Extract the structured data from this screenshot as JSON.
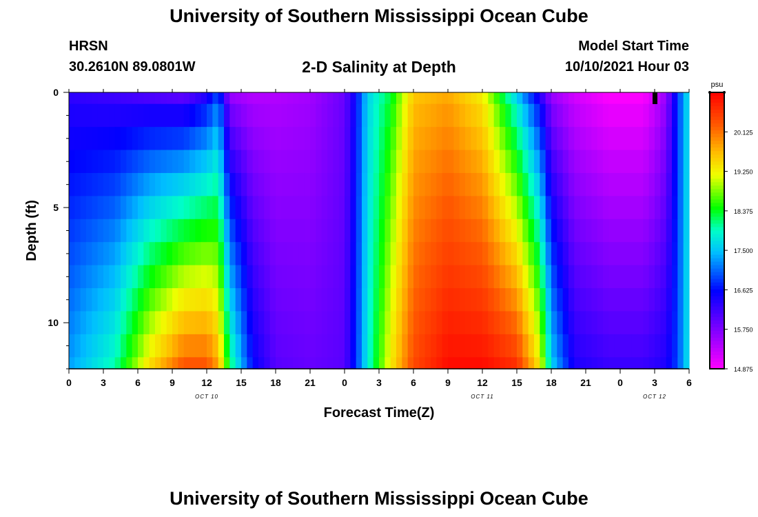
{
  "header": {
    "title": "University of Southern Mississippi Ocean Cube",
    "station": "HRSN",
    "coords": "30.2610N  89.0801W",
    "subtitle": "2-D Salinity at Depth",
    "model_start_label": "Model Start Time",
    "model_start_value": "10/10/2021 Hour 03"
  },
  "footer": {
    "title": "University of Southern Mississippi Ocean Cube"
  },
  "chart_data": {
    "type": "heatmap",
    "title": "2-D Salinity at Depth",
    "xlabel": "Forecast Time(Z)",
    "ylabel": "Depth (ft)",
    "x_start_hour_oct10": 0,
    "x_tick_labels": [
      "0",
      "3",
      "6",
      "9",
      "12",
      "15",
      "18",
      "21",
      "0",
      "3",
      "6",
      "9",
      "12",
      "15",
      "18",
      "21",
      "0",
      "3",
      "6"
    ],
    "day_labels": [
      {
        "label": "OCT 10",
        "hour": 12
      },
      {
        "label": "OCT 11",
        "hour": 36
      },
      {
        "label": "OCT 12",
        "hour": 51
      }
    ],
    "xlim_hours": [
      0,
      54
    ],
    "ylim_ft": [
      0,
      12
    ],
    "y_ticks": [
      0,
      5,
      10
    ],
    "depth_levels_ft": [
      0,
      1,
      2,
      3,
      4,
      5,
      6,
      7,
      8,
      9,
      10,
      11,
      12
    ],
    "colorbar": {
      "unit": "psu",
      "min": 14.875,
      "max": 21.0,
      "tick_labels": [
        "20.125",
        "19.250",
        "18.375",
        "17.500",
        "16.625",
        "15.750",
        "14.875"
      ]
    },
    "salinity_keyframes": [
      {
        "hour": 0,
        "surface": 16.3,
        "bottom": 17.3
      },
      {
        "hour": 4,
        "surface": 16.2,
        "bottom": 18.0
      },
      {
        "hour": 7,
        "surface": 16.1,
        "bottom": 19.4
      },
      {
        "hour": 10,
        "surface": 16.0,
        "bottom": 20.3
      },
      {
        "hour": 12,
        "surface": 16.4,
        "bottom": 20.3
      },
      {
        "hour": 13,
        "surface": 17.0,
        "bottom": 19.8
      },
      {
        "hour": 14,
        "surface": 15.6,
        "bottom": 18.2
      },
      {
        "hour": 16,
        "surface": 15.4,
        "bottom": 16.6
      },
      {
        "hour": 18,
        "surface": 15.4,
        "bottom": 16.0
      },
      {
        "hour": 21,
        "surface": 15.5,
        "bottom": 15.9
      },
      {
        "hour": 24,
        "surface": 15.9,
        "bottom": 16.0
      },
      {
        "hour": 25,
        "surface": 16.6,
        "bottom": 16.8
      },
      {
        "hour": 26,
        "surface": 17.6,
        "bottom": 17.8
      },
      {
        "hour": 28,
        "surface": 18.3,
        "bottom": 19.3
      },
      {
        "hour": 30,
        "surface": 19.6,
        "bottom": 20.4
      },
      {
        "hour": 33,
        "surface": 19.8,
        "bottom": 20.9
      },
      {
        "hour": 36,
        "surface": 19.3,
        "bottom": 20.9
      },
      {
        "hour": 39,
        "surface": 17.6,
        "bottom": 20.6
      },
      {
        "hour": 41,
        "surface": 16.4,
        "bottom": 19.3
      },
      {
        "hour": 42,
        "surface": 15.6,
        "bottom": 17.6
      },
      {
        "hour": 44,
        "surface": 15.2,
        "bottom": 16.4
      },
      {
        "hour": 47,
        "surface": 14.9,
        "bottom": 16.2
      },
      {
        "hour": 50,
        "surface": 14.9,
        "bottom": 16.2
      },
      {
        "hour": 51,
        "surface": 15.2,
        "bottom": 16.3
      },
      {
        "hour": 52,
        "surface": 15.6,
        "bottom": 16.4
      },
      {
        "hour": 53,
        "surface": 16.8,
        "bottom": 16.9
      },
      {
        "hour": 54,
        "surface": 17.8,
        "bottom": 17.8
      }
    ],
    "marker": {
      "hour": 51,
      "depth_ft": 0
    }
  }
}
